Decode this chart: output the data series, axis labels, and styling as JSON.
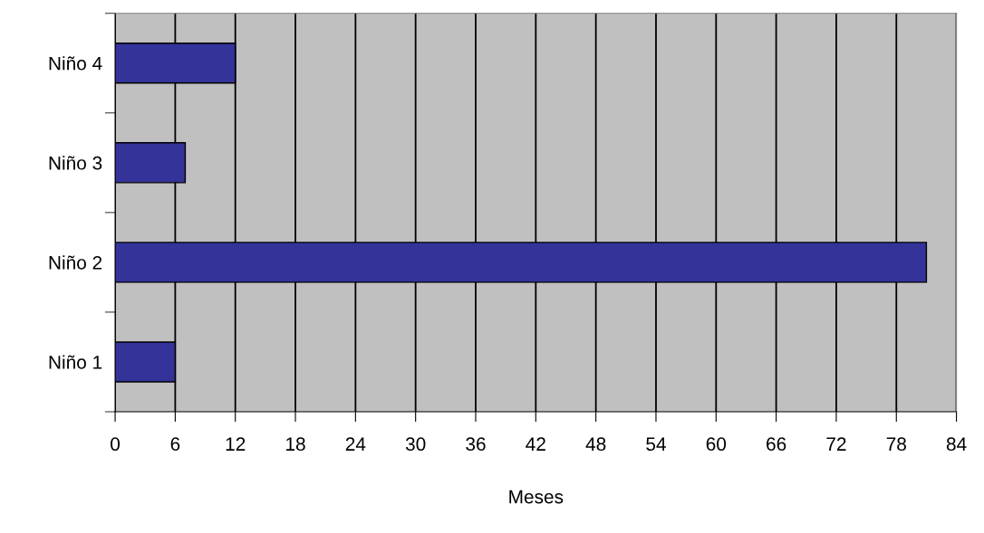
{
  "chart_data": {
    "type": "bar",
    "orientation": "horizontal",
    "xlabel": "Meses",
    "categories": [
      "Niño 4",
      "Niño 3",
      "Niño 2",
      "Niño 1"
    ],
    "values": [
      12,
      7,
      81,
      6
    ],
    "color": "#333399",
    "xlim": [
      0,
      84
    ],
    "xticks": [
      0,
      6,
      12,
      18,
      24,
      30,
      36,
      42,
      48,
      54,
      60,
      66,
      72,
      78,
      84
    ],
    "grid": "x",
    "legend": false
  }
}
